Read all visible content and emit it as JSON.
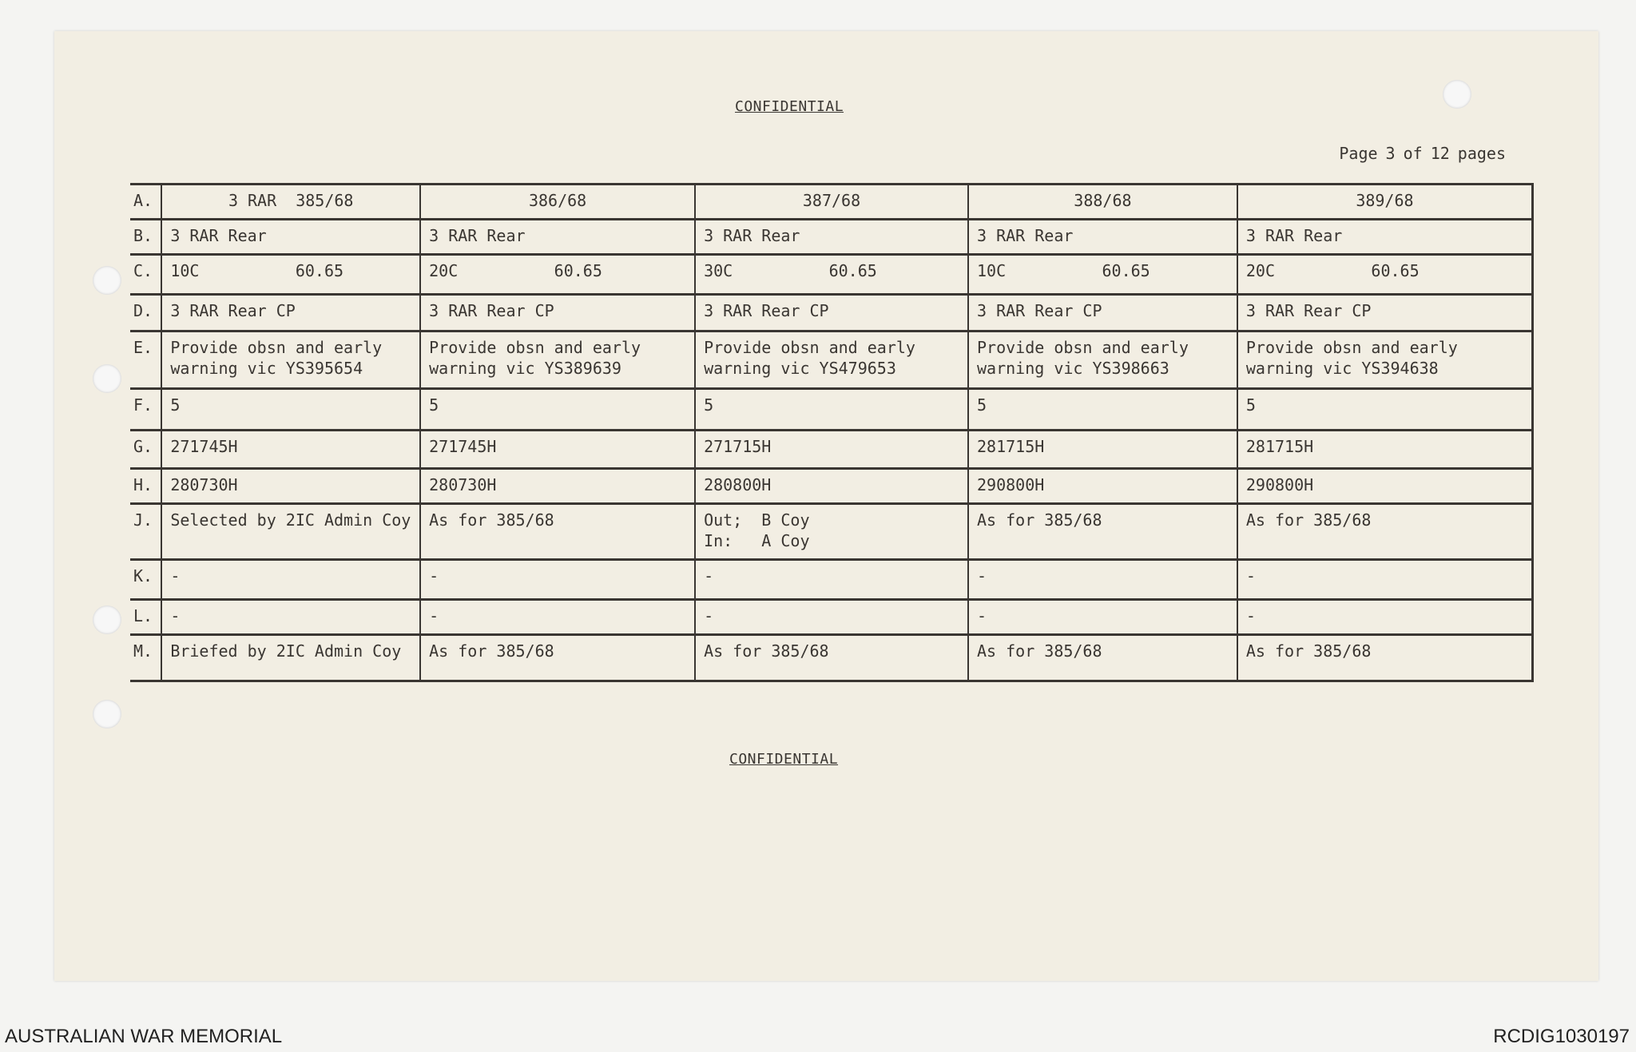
{
  "header": {
    "classification": "CONFIDENTIAL",
    "page": {
      "label": "Page",
      "number": "3",
      "of": "of",
      "total": "12",
      "unit": "pages"
    }
  },
  "table": {
    "rows": [
      {
        "label": "A.",
        "cells": [
          "3 RAR  385/68",
          "386/68",
          "387/68",
          "388/68",
          "389/68"
        ]
      },
      {
        "label": "B.",
        "cells": [
          "3 RAR Rear",
          "3 RAR Rear",
          "3 RAR Rear",
          "3 RAR Rear",
          "3 RAR Rear"
        ]
      },
      {
        "label": "C.",
        "cells": [
          "10C          60.65",
          "20C          60.65",
          "30C          60.65",
          "10C          60.65",
          "20C          60.65"
        ]
      },
      {
        "label": "D.",
        "cells": [
          "3 RAR Rear CP",
          "3 RAR Rear CP",
          "3 RAR Rear CP",
          "3 RAR Rear CP",
          "3 RAR Rear CP"
        ]
      },
      {
        "label": "E.",
        "cells": [
          "Provide obsn and early warning vic YS395654",
          "Provide obsn and early warning vic YS389639",
          "Provide obsn and early warning vic YS479653",
          "Provide obsn and early warning vic YS398663",
          "Provide obsn and early warning vic YS394638"
        ]
      },
      {
        "label": "F.",
        "cells": [
          "5",
          "5",
          "5",
          "5",
          "5"
        ]
      },
      {
        "label": "G.",
        "cells": [
          "271745H",
          "271745H",
          "271715H",
          "281715H",
          "281715H"
        ]
      },
      {
        "label": "H.",
        "cells": [
          "280730H",
          "280730H",
          "280800H",
          "290800H",
          "290800H"
        ]
      },
      {
        "label": "J.",
        "cells": [
          "Selected by 2IC Admin Coy",
          "As for 385/68",
          "Out;  B Coy\nIn:   A Coy",
          "As for 385/68",
          "As for 385/68"
        ]
      },
      {
        "label": "K.",
        "cells": [
          "-",
          "-",
          "-",
          "-",
          "-"
        ]
      },
      {
        "label": "L.",
        "cells": [
          "-",
          "-",
          "-",
          "-",
          "-"
        ]
      },
      {
        "label": "M.",
        "cells": [
          "Briefed by 2IC Admin Coy",
          "As for 385/68",
          "As for 385/68",
          "As for 385/68",
          "As for 385/68"
        ]
      }
    ]
  },
  "footer_classification": "CONFIDENTIAL",
  "watermark": {
    "left": "AUSTRALIAN WAR MEMORIAL",
    "right": "RCDIG1030197"
  }
}
